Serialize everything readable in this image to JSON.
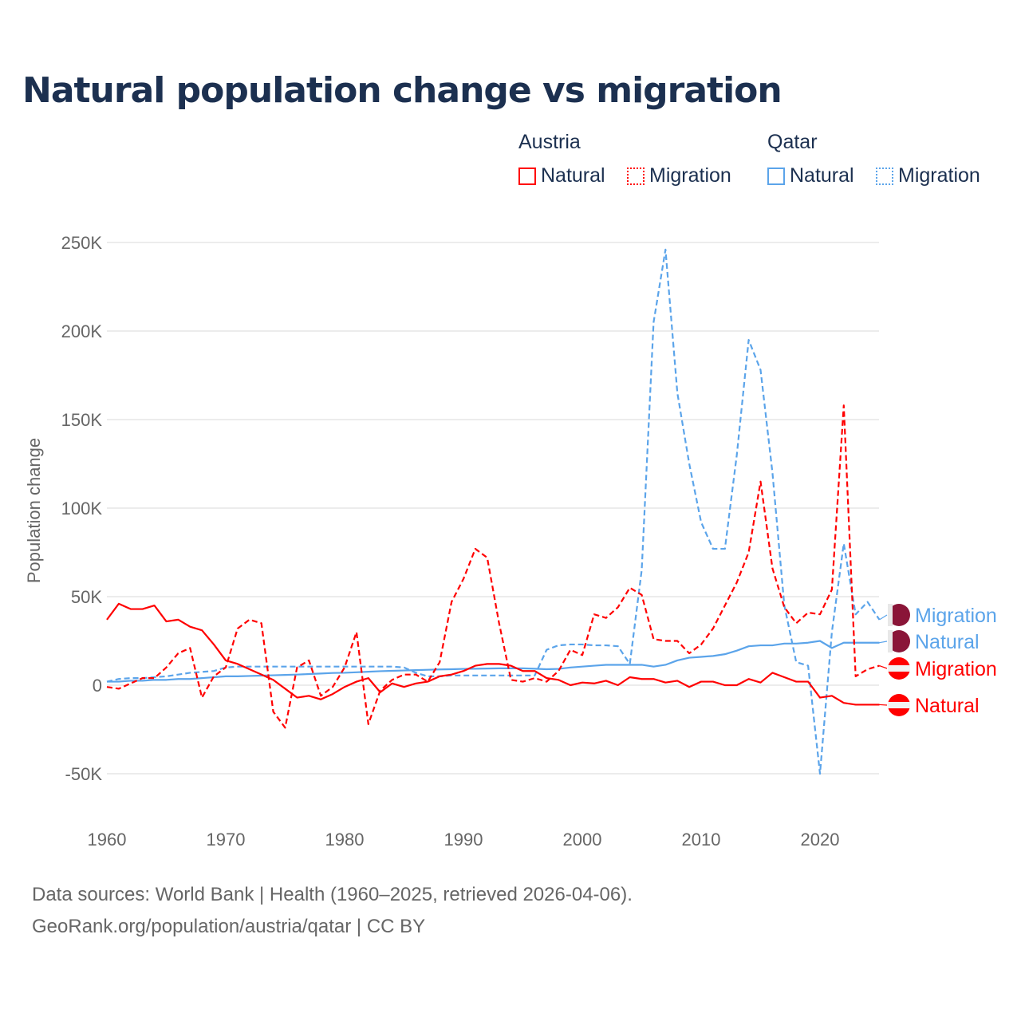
{
  "chart_data": {
    "type": "line",
    "title": "Natural population change vs migration",
    "ylabel": "Population change",
    "xlabel": "",
    "ylim": [
      -70000,
      250000
    ],
    "xlim": [
      1960,
      2025
    ],
    "yticks": [
      {
        "v": 250000,
        "label": "250K"
      },
      {
        "v": 200000,
        "label": "200K"
      },
      {
        "v": 150000,
        "label": "150K"
      },
      {
        "v": 100000,
        "label": "100K"
      },
      {
        "v": 50000,
        "label": "50K"
      },
      {
        "v": 0,
        "label": "0"
      },
      {
        "v": -50000,
        "label": "-50K"
      }
    ],
    "xticks": [
      {
        "v": 1960,
        "label": "1960"
      },
      {
        "v": 1970,
        "label": "1970"
      },
      {
        "v": 1980,
        "label": "1980"
      },
      {
        "v": 1990,
        "label": "1990"
      },
      {
        "v": 2000,
        "label": "2000"
      },
      {
        "v": 2010,
        "label": "2010"
      },
      {
        "v": 2020,
        "label": "2020"
      }
    ],
    "x_start": 1960,
    "legend": {
      "groups": [
        {
          "name": "Austria",
          "items": [
            "Natural",
            "Migration"
          ]
        },
        {
          "name": "Qatar",
          "items": [
            "Natural",
            "Migration"
          ]
        }
      ]
    },
    "series": [
      {
        "name": "Qatar Migration",
        "country": "Qatar",
        "kind": "Migration",
        "color": "#5ba4ea",
        "dashed": true,
        "end_label": "Migration",
        "values": [
          2,
          3.5,
          4,
          4,
          4.5,
          5,
          6,
          7,
          7.5,
          8,
          10,
          10.5,
          10.5,
          10.5,
          10.5,
          10.5,
          10.5,
          10.5,
          10.5,
          10.5,
          10.5,
          10.5,
          10.5,
          10.5,
          10.5,
          10,
          7,
          5,
          5,
          5.5,
          5.5,
          5.5,
          5.5,
          5.5,
          5.5,
          5.5,
          5.5,
          20,
          22.5,
          23,
          23,
          22.5,
          22.5,
          22,
          12,
          65,
          205,
          246,
          165,
          125,
          92,
          77,
          77,
          130,
          195,
          178,
          120,
          45,
          13,
          11,
          -50,
          30,
          80,
          40,
          47,
          37
        ]
      },
      {
        "name": "Qatar Natural",
        "country": "Qatar",
        "kind": "Natural",
        "color": "#5ba4ea",
        "dashed": false,
        "end_label": "Natural",
        "values": [
          2,
          2,
          2.5,
          2.5,
          3,
          3,
          3.5,
          3.5,
          4,
          4.5,
          5,
          5,
          5.2,
          5.4,
          5.6,
          5.8,
          6,
          6.3,
          6.6,
          6.9,
          7,
          7.3,
          7.6,
          7.9,
          8.1,
          8.3,
          8.5,
          8.7,
          8.9,
          9,
          9.2,
          9.3,
          9.4,
          9.5,
          9.5,
          9.5,
          9.3,
          9,
          9.2,
          10,
          10.5,
          11,
          11.5,
          11.5,
          11.5,
          11.5,
          10.5,
          11.5,
          14,
          15.5,
          16,
          16.5,
          17.5,
          19.5,
          22,
          22.5,
          22.5,
          23.5,
          23.5,
          24,
          25,
          21,
          24,
          24,
          24,
          24
        ]
      },
      {
        "name": "Austria Migration",
        "country": "Austria",
        "kind": "Migration",
        "color": "#ff0000",
        "dashed": true,
        "end_label": "Migration",
        "values": [
          -1,
          -2,
          1,
          4,
          4,
          10,
          18,
          21,
          -7,
          5,
          10,
          32,
          37,
          35,
          -15,
          -24,
          10,
          14,
          -6,
          -1,
          10,
          30,
          -22,
          -3,
          3,
          6,
          6,
          2,
          13,
          47,
          60,
          77,
          72,
          35,
          3,
          2,
          4,
          2,
          8,
          20,
          17,
          40,
          38,
          44,
          55,
          51,
          26,
          25,
          25,
          18,
          23,
          32,
          45,
          58,
          75,
          115,
          66,
          44,
          35,
          41,
          40,
          54,
          158,
          5,
          9,
          11
        ]
      },
      {
        "name": "Austria Natural",
        "country": "Austria",
        "kind": "Natural",
        "color": "#ff0000",
        "dashed": false,
        "end_label": "Natural",
        "values": [
          37,
          46,
          43,
          43,
          45,
          36,
          37,
          33,
          31,
          23,
          14,
          12,
          9,
          6,
          3,
          -2,
          -7,
          -6,
          -8,
          -5,
          -1,
          2,
          4,
          -4,
          1,
          -1,
          1,
          2,
          5,
          6,
          8,
          11,
          12,
          12,
          11,
          8,
          8,
          4,
          3,
          0,
          1.5,
          1,
          2.5,
          0,
          4.5,
          3.5,
          3.5,
          1.5,
          2.5,
          -1,
          2,
          2,
          0,
          0,
          3.5,
          1.5,
          7,
          4.5,
          2,
          2,
          -7,
          -6,
          -10,
          -11,
          -11,
          -11
        ]
      }
    ],
    "value_unit": "thousands"
  },
  "source": {
    "line1": "Data sources: World Bank | Health (1960–2025, retrieved 2026-04-06).",
    "line2": "GeoRank.org/population/austria/qatar | CC BY"
  }
}
